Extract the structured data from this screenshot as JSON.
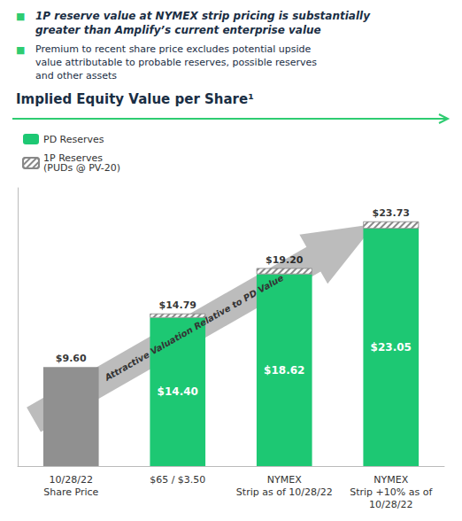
{
  "chart_data": {
    "type": "bar",
    "bullet": "■",
    "bullet_color": "#2ecc71",
    "text_color": "#1a2e44",
    "line_color": "#2ecc71",
    "headline": [
      "1P reserve value at NYMEX strip pricing is substantially",
      "greater than Amplify’s current enterprise value"
    ],
    "subtitle": [
      "Premium to recent share price excludes potential upside",
      "value attributable to probable reserves, possible reserves",
      "and other assets"
    ],
    "title": "Implied Equity Value per Share¹",
    "annotation": "Attractive Valuation Relative to PD Value",
    "categories": [
      "10/28/22\nShare Price",
      "$65 / $3.50",
      "NYMEX\nStrip as of 10/28/22",
      "NYMEX\nStrip +10% as of\n10/28/22"
    ],
    "stacked": true,
    "data_labels": true,
    "series": [
      {
        "name": "PD Reserves",
        "color": "#1dc873",
        "colors": [
          "#909090",
          "#1dc873",
          "#1dc873",
          "#1dc873"
        ],
        "values": [
          9.6,
          14.4,
          18.62,
          23.05
        ],
        "value_labels": [
          null,
          "$14.40",
          "$18.62",
          "$23.05"
        ]
      },
      {
        "name": "1P Reserves\n(PUDs @ PV-20)",
        "color": "#ffffff",
        "values": [
          null,
          0.39,
          0.58,
          0.68
        ]
      }
    ],
    "totals": [
      9.6,
      14.79,
      19.2,
      23.73
    ],
    "total_labels": [
      "$9.60",
      "$14.79",
      "$19.20",
      "$23.73"
    ],
    "ylim": [
      0,
      27
    ],
    "yticks": [],
    "grid": false,
    "legend": "upper left",
    "tick_labels": "x"
  }
}
